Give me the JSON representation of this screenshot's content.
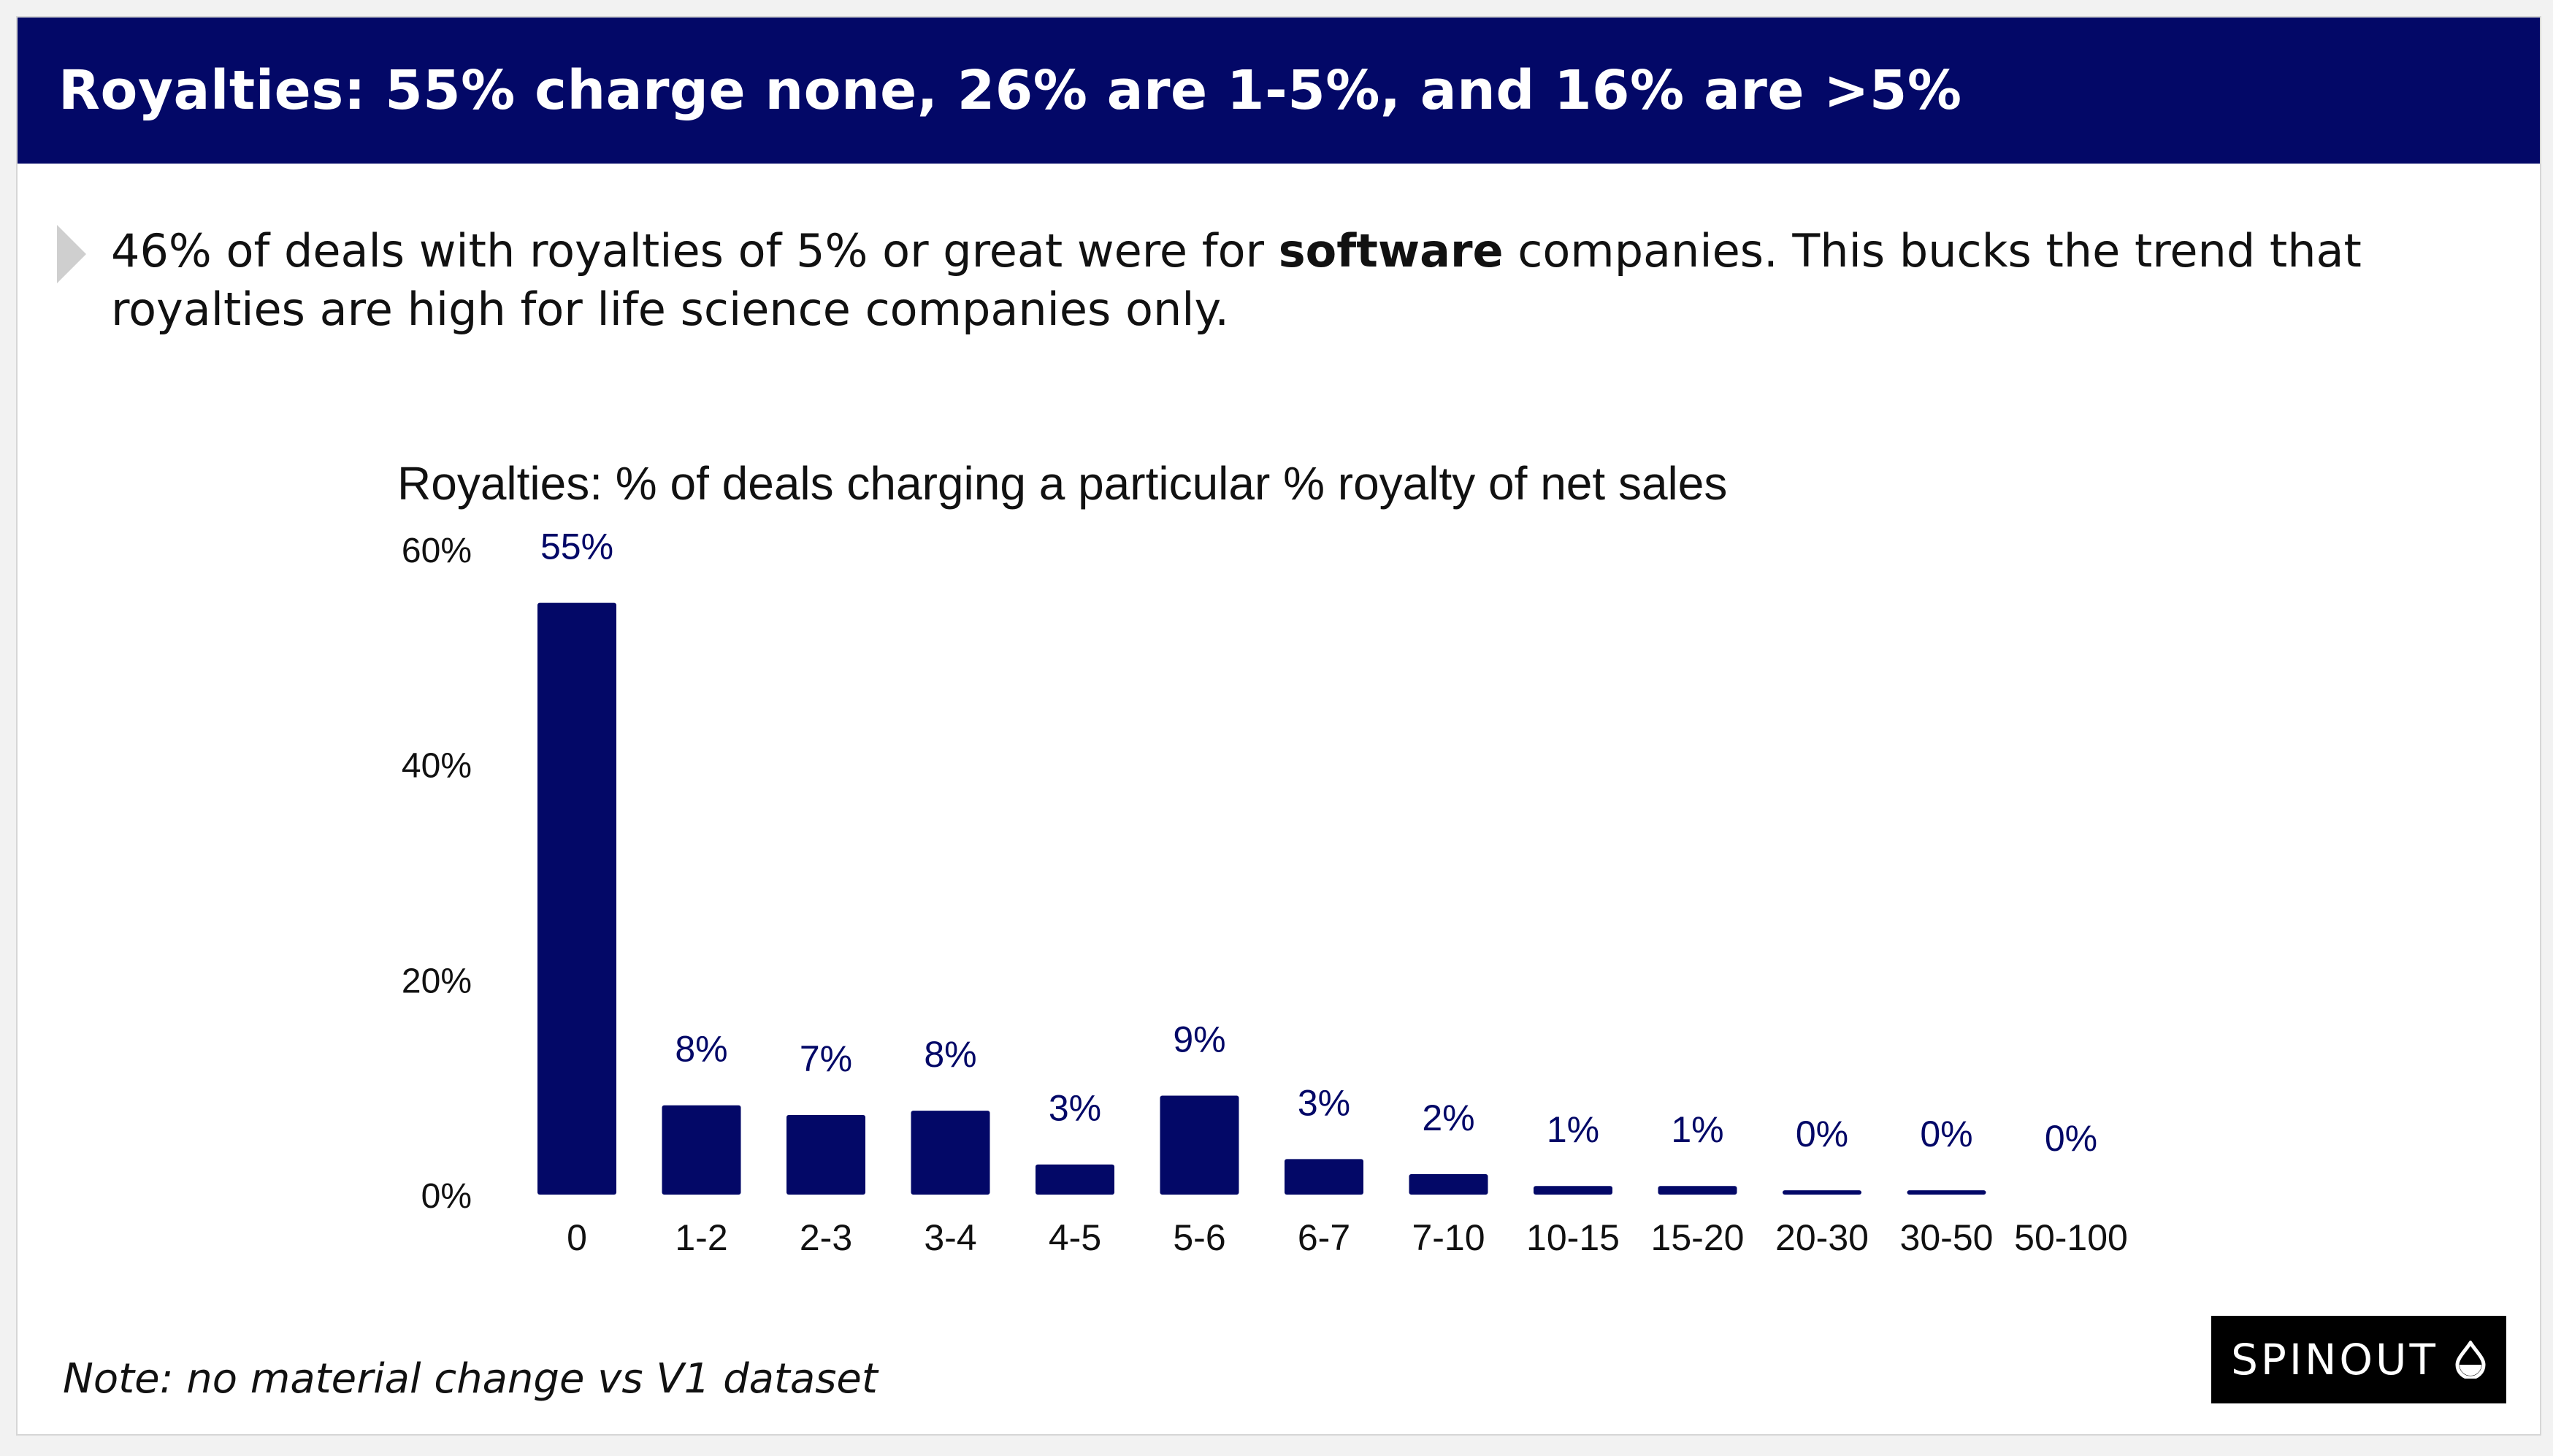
{
  "header": {
    "title": "Royalties: 55% charge none, 26% are 1-5%, and 16% are >5%"
  },
  "lede": {
    "before": "46% of deals with royalties of 5% or great were for ",
    "emphasis": "software",
    "after": " companies. This bucks the trend that royalties are high for life science companies only."
  },
  "footer": {
    "note": "Note: no material change vs V1 dataset",
    "brand": "SPINOUT",
    "brand_icon": "droplet-icon"
  },
  "colors": {
    "header_bg": "#030867",
    "bar": "#030867",
    "data_label": "#030867",
    "brand_bg": "#000000"
  },
  "chart_data": {
    "type": "bar",
    "title": "Royalties: % of deals charging a particular % royalty of net sales",
    "xlabel": "",
    "ylabel": "",
    "categories": [
      "0",
      "1-2",
      "2-3",
      "3-4",
      "4-5",
      "5-6",
      "6-7",
      "7-10",
      "10-15",
      "15-20",
      "20-30",
      "30-50",
      "50-100"
    ],
    "values": [
      55,
      8.3,
      7.4,
      7.8,
      2.8,
      9.2,
      3.3,
      1.9,
      0.8,
      0.8,
      0.4,
      0.4,
      0
    ],
    "data_labels": [
      "55%",
      "8%",
      "7%",
      "8%",
      "3%",
      "9%",
      "3%",
      "2%",
      "1%",
      "1%",
      "0%",
      "0%",
      "0%"
    ],
    "y_ticks": [
      0,
      20,
      40,
      60
    ],
    "y_tick_labels": [
      "0%",
      "20%",
      "40%",
      "60%"
    ],
    "ylim": [
      0,
      60
    ],
    "grid": false,
    "legend": "none"
  }
}
